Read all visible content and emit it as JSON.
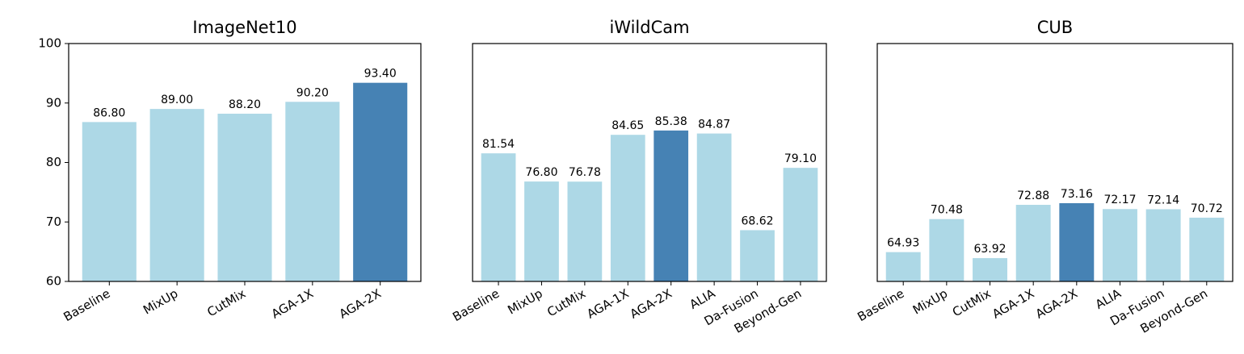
{
  "chart_data": [
    {
      "type": "bar",
      "title": "ImageNet10",
      "categories": [
        "Baseline",
        "MixUp",
        "CutMix",
        "AGA-1X",
        "AGA-2X"
      ],
      "values": [
        86.8,
        89.0,
        88.2,
        90.2,
        93.4
      ],
      "value_labels": [
        "86.80",
        "89.00",
        "88.20",
        "90.20",
        "93.40"
      ],
      "colors": [
        "#add8e6",
        "#add8e6",
        "#add8e6",
        "#add8e6",
        "#4682b4"
      ],
      "ylim": [
        60,
        100
      ],
      "yticks": [
        60,
        70,
        80,
        90,
        100
      ]
    },
    {
      "type": "bar",
      "title": "iWildCam",
      "categories": [
        "Baseline",
        "MixUp",
        "CutMix",
        "AGA-1X",
        "AGA-2X",
        "ALIA",
        "Da-Fusion",
        "Beyond-Gen"
      ],
      "values": [
        81.54,
        76.8,
        76.78,
        84.65,
        85.38,
        84.87,
        68.62,
        79.1
      ],
      "value_labels": [
        "81.54",
        "76.80",
        "76.78",
        "84.65",
        "85.38",
        "84.87",
        "68.62",
        "79.10"
      ],
      "colors": [
        "#add8e6",
        "#add8e6",
        "#add8e6",
        "#add8e6",
        "#4682b4",
        "#add8e6",
        "#add8e6",
        "#add8e6"
      ],
      "ylim": [
        60,
        100
      ]
    },
    {
      "type": "bar",
      "title": "CUB",
      "categories": [
        "Baseline",
        "MixUp",
        "CutMix",
        "AGA-1X",
        "AGA-2X",
        "ALIA",
        "Da-Fusion",
        "Beyond-Gen"
      ],
      "values": [
        64.93,
        70.48,
        63.92,
        72.88,
        73.16,
        72.17,
        72.14,
        70.72
      ],
      "colors": [
        "#add8e6",
        "#add8e6",
        "#add8e6",
        "#add8e6",
        "#4682b4",
        "#add8e6",
        "#add8e6",
        "#add8e6"
      ],
      "ylim": [
        60,
        100
      ]
    }
  ]
}
